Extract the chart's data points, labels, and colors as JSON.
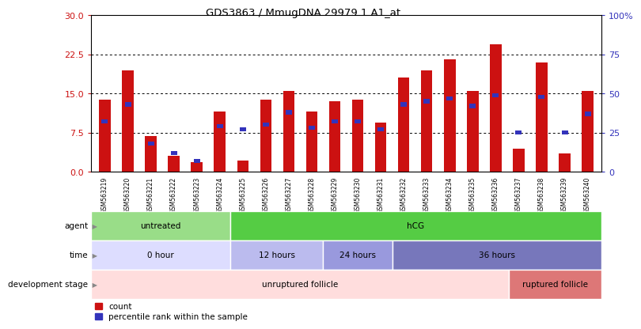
{
  "title": "GDS3863 / MmugDNA.29979.1.A1_at",
  "samples": [
    "GSM563219",
    "GSM563220",
    "GSM563221",
    "GSM563222",
    "GSM563223",
    "GSM563224",
    "GSM563225",
    "GSM563226",
    "GSM563227",
    "GSM563228",
    "GSM563229",
    "GSM563230",
    "GSM563231",
    "GSM563232",
    "GSM563233",
    "GSM563234",
    "GSM563235",
    "GSM563236",
    "GSM563237",
    "GSM563238",
    "GSM563239",
    "GSM563240"
  ],
  "count_values": [
    13.8,
    19.5,
    6.8,
    3.0,
    1.8,
    11.5,
    2.2,
    13.8,
    15.5,
    11.5,
    13.5,
    13.8,
    9.5,
    18.0,
    19.5,
    21.5,
    15.5,
    24.5,
    4.5,
    21.0,
    3.5,
    15.5
  ],
  "percentile_values": [
    32,
    43,
    18,
    12,
    7,
    29,
    27,
    30,
    38,
    28,
    32,
    32,
    27,
    43,
    45,
    47,
    42,
    49,
    25,
    48,
    25,
    37
  ],
  "ylim_left": [
    0,
    30
  ],
  "ylim_right": [
    0,
    100
  ],
  "yticks_left": [
    0,
    7.5,
    15,
    22.5,
    30
  ],
  "yticks_right": [
    0,
    25,
    50,
    75,
    100
  ],
  "bar_color": "#cc1111",
  "blue_color": "#3333bb",
  "agent_groups": [
    {
      "label": "untreated",
      "start": 0,
      "end": 6,
      "color": "#99dd88"
    },
    {
      "label": "hCG",
      "start": 6,
      "end": 22,
      "color": "#55cc44"
    }
  ],
  "time_groups": [
    {
      "label": "0 hour",
      "start": 0,
      "end": 6,
      "color": "#ddddff"
    },
    {
      "label": "12 hours",
      "start": 6,
      "end": 10,
      "color": "#bbbbee"
    },
    {
      "label": "24 hours",
      "start": 10,
      "end": 13,
      "color": "#9999dd"
    },
    {
      "label": "36 hours",
      "start": 13,
      "end": 22,
      "color": "#7777bb"
    }
  ],
  "dev_groups": [
    {
      "label": "unruptured follicle",
      "start": 0,
      "end": 18,
      "color": "#ffdddd"
    },
    {
      "label": "ruptured follicle",
      "start": 18,
      "end": 22,
      "color": "#dd7777"
    }
  ],
  "legend_items": [
    {
      "label": "count",
      "color": "#cc1111"
    },
    {
      "label": "percentile rank within the sample",
      "color": "#3333bb"
    }
  ],
  "bar_width": 0.5,
  "figure_bg": "#ffffff",
  "plot_bg": "#ffffff"
}
